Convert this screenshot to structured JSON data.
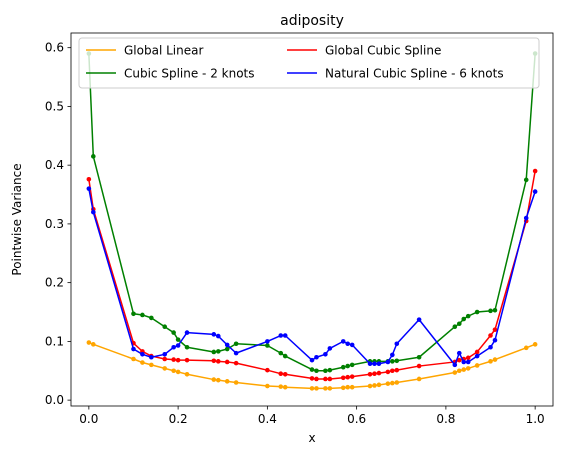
{
  "chart_data": {
    "type": "line",
    "title": "adiposity",
    "xlabel": "x",
    "ylabel": "Pointwise Variance",
    "xlim": [
      -0.04,
      1.04
    ],
    "ylim": [
      -0.01,
      0.625
    ],
    "xticks": [
      0.0,
      0.2,
      0.4,
      0.6,
      0.8,
      1.0
    ],
    "xtick_labels": [
      "0.0",
      "0.2",
      "0.4",
      "0.6",
      "0.8",
      "1.0"
    ],
    "yticks": [
      0.0,
      0.1,
      0.2,
      0.3,
      0.4,
      0.5,
      0.6
    ],
    "ytick_labels": [
      "0.0",
      "0.1",
      "0.2",
      "0.3",
      "0.4",
      "0.5",
      "0.6"
    ],
    "grid": false,
    "legend": {
      "placement": "top",
      "columns": 2
    },
    "x": [
      0.0,
      0.01,
      0.1,
      0.12,
      0.14,
      0.17,
      0.19,
      0.2,
      0.22,
      0.28,
      0.29,
      0.31,
      0.33,
      0.4,
      0.43,
      0.44,
      0.5,
      0.51,
      0.53,
      0.54,
      0.57,
      0.58,
      0.59,
      0.63,
      0.64,
      0.65,
      0.67,
      0.68,
      0.69,
      0.74,
      0.82,
      0.83,
      0.84,
      0.85,
      0.87,
      0.9,
      0.91,
      0.98,
      1.0
    ],
    "series": [
      {
        "name": "Global Linear",
        "color": "#ffa500",
        "values": [
          0.098,
          0.095,
          0.07,
          0.064,
          0.06,
          0.054,
          0.05,
          0.048,
          0.044,
          0.035,
          0.034,
          0.032,
          0.03,
          0.024,
          0.023,
          0.022,
          0.02,
          0.02,
          0.02,
          0.02,
          0.021,
          0.022,
          0.022,
          0.024,
          0.025,
          0.026,
          0.028,
          0.029,
          0.03,
          0.036,
          0.047,
          0.05,
          0.052,
          0.054,
          0.059,
          0.066,
          0.069,
          0.089,
          0.095
        ]
      },
      {
        "name": "Global Cubic Spline",
        "color": "#ff0000",
        "values": [
          0.376,
          0.325,
          0.097,
          0.083,
          0.075,
          0.07,
          0.069,
          0.068,
          0.068,
          0.067,
          0.066,
          0.065,
          0.063,
          0.051,
          0.045,
          0.044,
          0.037,
          0.036,
          0.036,
          0.036,
          0.038,
          0.039,
          0.04,
          0.044,
          0.045,
          0.046,
          0.048,
          0.05,
          0.051,
          0.058,
          0.065,
          0.068,
          0.07,
          0.072,
          0.082,
          0.11,
          0.12,
          0.305,
          0.39
        ]
      },
      {
        "name": "Cubic Spline - 2 knots",
        "color": "#008000",
        "values": [
          0.59,
          0.415,
          0.147,
          0.145,
          0.14,
          0.125,
          0.115,
          0.103,
          0.09,
          0.082,
          0.083,
          0.087,
          0.096,
          0.093,
          0.08,
          0.075,
          0.052,
          0.05,
          0.05,
          0.051,
          0.056,
          0.058,
          0.06,
          0.066,
          0.066,
          0.066,
          0.066,
          0.066,
          0.067,
          0.073,
          0.125,
          0.13,
          0.138,
          0.143,
          0.15,
          0.152,
          0.153,
          0.375,
          0.59
        ]
      },
      {
        "name": "Natural Cubic Spline - 6 knots",
        "color": "#0000ff",
        "values": [
          0.36,
          0.32,
          0.087,
          0.078,
          0.073,
          0.078,
          0.09,
          0.093,
          0.115,
          0.112,
          0.109,
          0.094,
          0.08,
          0.1,
          0.11,
          0.11,
          0.068,
          0.073,
          0.078,
          0.088,
          0.1,
          0.096,
          0.094,
          0.062,
          0.062,
          0.062,
          0.065,
          0.077,
          0.096,
          0.137,
          0.06,
          0.08,
          0.065,
          0.065,
          0.075,
          0.09,
          0.102,
          0.31,
          0.355
        ]
      }
    ]
  }
}
